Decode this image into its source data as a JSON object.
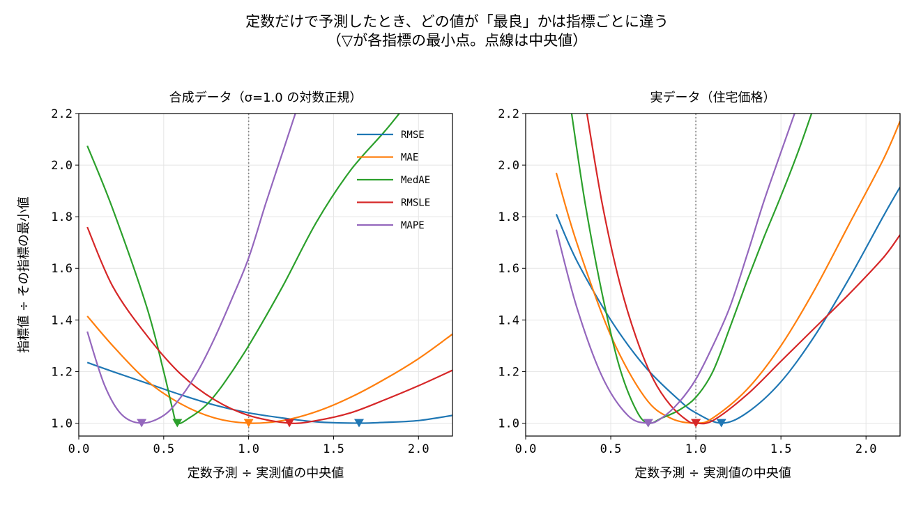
{
  "figure": {
    "title_line1": "定数だけで予測したとき、どの値が「最良」かは指標ごとに違う",
    "title_line2": "（▽が各指標の最小点。点線は中央値）"
  },
  "chart_data": [
    {
      "type": "line",
      "title": "合成データ（σ=1.0 の対数正規）",
      "xlabel": "定数予測 ÷ 実測値の中央値",
      "ylabel": "指標値 ÷ その指標の最小値",
      "xlim": [
        0.0,
        2.2
      ],
      "ylim": [
        0.95,
        2.2
      ],
      "xticks": [
        "0.0",
        "0.5",
        "1.0",
        "1.5",
        "2.0"
      ],
      "xtick_values": [
        0.0,
        0.5,
        1.0,
        1.5,
        2.0
      ],
      "yticks": [
        "1.0",
        "1.2",
        "1.4",
        "1.6",
        "1.8",
        "2.0",
        "2.2"
      ],
      "ytick_values": [
        1.0,
        1.2,
        1.4,
        1.6,
        1.8,
        2.0,
        2.2
      ],
      "grid": true,
      "legend_position": "upper right",
      "median_line_x": 1.0,
      "series": [
        {
          "name": "RMSE",
          "color": "#1f77b4",
          "x": [
            0.05,
            0.2,
            0.4,
            0.6,
            0.8,
            1.0,
            1.2,
            1.4,
            1.65,
            1.8,
            2.0,
            2.2
          ],
          "y": [
            1.235,
            1.2,
            1.155,
            1.11,
            1.07,
            1.04,
            1.02,
            1.005,
            1.0,
            1.003,
            1.01,
            1.03
          ],
          "min_x": 1.65
        },
        {
          "name": "MAE",
          "color": "#ff7f0e",
          "x": [
            0.05,
            0.2,
            0.4,
            0.6,
            0.8,
            1.0,
            1.2,
            1.4,
            1.6,
            1.8,
            2.0,
            2.2
          ],
          "y": [
            1.415,
            1.3,
            1.165,
            1.075,
            1.02,
            1.0,
            1.01,
            1.045,
            1.1,
            1.17,
            1.25,
            1.345
          ],
          "min_x": 1.0
        },
        {
          "name": "MedAE",
          "color": "#2ca02c",
          "x": [
            0.05,
            0.2,
            0.4,
            0.5,
            0.55,
            0.58,
            0.65,
            0.75,
            0.85,
            1.0,
            1.2,
            1.4,
            1.6,
            1.8,
            1.95,
            2.1
          ],
          "y": [
            2.075,
            1.83,
            1.45,
            1.2,
            1.06,
            1.0,
            1.02,
            1.07,
            1.15,
            1.3,
            1.53,
            1.78,
            1.98,
            2.13,
            2.25,
            2.35
          ],
          "min_x": 0.58
        },
        {
          "name": "RMSLE",
          "color": "#d62728",
          "x": [
            0.05,
            0.2,
            0.4,
            0.6,
            0.8,
            1.0,
            1.24,
            1.4,
            1.6,
            1.8,
            2.0,
            2.2
          ],
          "y": [
            1.76,
            1.53,
            1.34,
            1.19,
            1.09,
            1.03,
            1.0,
            1.01,
            1.04,
            1.09,
            1.145,
            1.205
          ],
          "min_x": 1.24
        },
        {
          "name": "MAPE",
          "color": "#9467bd",
          "x": [
            0.05,
            0.15,
            0.25,
            0.37,
            0.5,
            0.6,
            0.7,
            0.8,
            0.9,
            1.0,
            1.1,
            1.2,
            1.3
          ],
          "y": [
            1.355,
            1.15,
            1.035,
            1.0,
            1.03,
            1.1,
            1.2,
            1.33,
            1.48,
            1.64,
            1.85,
            2.05,
            2.25
          ],
          "min_x": 0.37
        }
      ]
    },
    {
      "type": "line",
      "title": "実データ（住宅価格）",
      "xlabel": "定数予測 ÷ 実測値の中央値",
      "ylabel": "",
      "xlim": [
        0.0,
        2.2
      ],
      "ylim": [
        0.95,
        2.2
      ],
      "xticks": [
        "0.0",
        "0.5",
        "1.0",
        "1.5",
        "2.0"
      ],
      "xtick_values": [
        0.0,
        0.5,
        1.0,
        1.5,
        2.0
      ],
      "yticks": [
        "1.0",
        "1.2",
        "1.4",
        "1.6",
        "1.8",
        "2.0",
        "2.2"
      ],
      "ytick_values": [
        1.0,
        1.2,
        1.4,
        1.6,
        1.8,
        2.0,
        2.2
      ],
      "grid": true,
      "median_line_x": 1.0,
      "series": [
        {
          "name": "RMSE",
          "color": "#1f77b4",
          "x": [
            0.18,
            0.3,
            0.5,
            0.7,
            0.9,
            1.0,
            1.15,
            1.3,
            1.5,
            1.7,
            1.9,
            2.1,
            2.2
          ],
          "y": [
            1.81,
            1.63,
            1.4,
            1.22,
            1.09,
            1.04,
            1.0,
            1.04,
            1.16,
            1.34,
            1.56,
            1.8,
            1.915
          ],
          "min_x": 1.15
        },
        {
          "name": "MAE",
          "color": "#ff7f0e",
          "x": [
            0.18,
            0.3,
            0.5,
            0.7,
            0.85,
            1.0,
            1.1,
            1.3,
            1.5,
            1.7,
            1.9,
            2.1,
            2.2
          ],
          "y": [
            1.97,
            1.7,
            1.34,
            1.1,
            1.02,
            1.0,
            1.02,
            1.13,
            1.3,
            1.52,
            1.77,
            2.02,
            2.17
          ],
          "min_x": 1.0
        },
        {
          "name": "MedAE",
          "color": "#2ca02c",
          "x": [
            0.27,
            0.35,
            0.45,
            0.55,
            0.65,
            0.72,
            0.8,
            0.9,
            1.0,
            1.1,
            1.2,
            1.3,
            1.4,
            1.5,
            1.6,
            1.68
          ],
          "y": [
            2.2,
            1.85,
            1.5,
            1.22,
            1.05,
            1.0,
            1.02,
            1.05,
            1.1,
            1.2,
            1.37,
            1.55,
            1.72,
            1.88,
            2.05,
            2.2
          ],
          "min_x": 0.72
        },
        {
          "name": "RMSLE",
          "color": "#d62728",
          "x": [
            0.36,
            0.45,
            0.55,
            0.65,
            0.75,
            0.85,
            0.95,
            1.0,
            1.1,
            1.3,
            1.5,
            1.7,
            1.9,
            2.1,
            2.2
          ],
          "y": [
            2.2,
            1.85,
            1.55,
            1.33,
            1.17,
            1.07,
            1.01,
            1.0,
            1.01,
            1.11,
            1.24,
            1.37,
            1.5,
            1.64,
            1.73
          ],
          "min_x": 1.0
        },
        {
          "name": "MAPE",
          "color": "#9467bd",
          "x": [
            0.18,
            0.3,
            0.45,
            0.6,
            0.72,
            0.8,
            0.9,
            1.0,
            1.1,
            1.2,
            1.3,
            1.4,
            1.5,
            1.58
          ],
          "y": [
            1.75,
            1.45,
            1.18,
            1.03,
            1.0,
            1.02,
            1.08,
            1.17,
            1.3,
            1.45,
            1.65,
            1.86,
            2.05,
            2.2
          ],
          "min_x": 0.72
        }
      ]
    }
  ]
}
